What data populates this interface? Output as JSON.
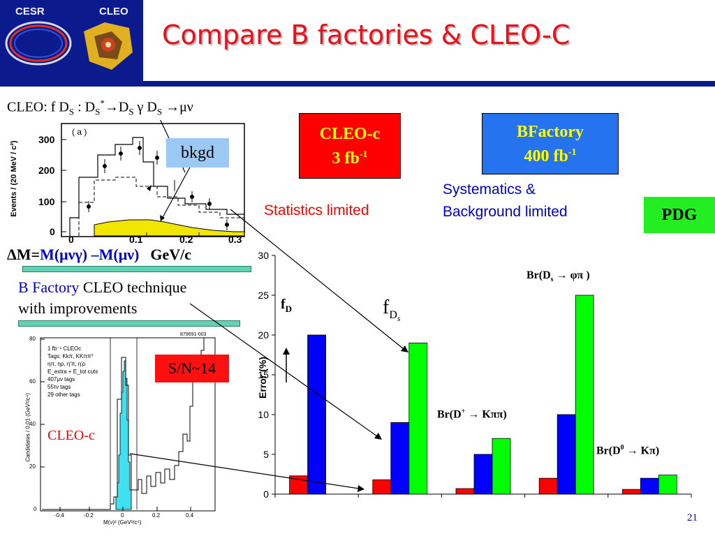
{
  "header": {
    "logo_cesr": "CESR",
    "logo_cleo": "CLEO",
    "title": "Compare B factories & CLEO-C"
  },
  "cleo_fds_label": {
    "a": "CLEO: f D",
    "b": "S",
    "c": " : D",
    "d": "S",
    "e": "*",
    "f": "→D",
    "g": "S",
    "h": " γ D",
    "i": "S",
    "j": " →μν"
  },
  "top_plot": {
    "panel": "( a )",
    "yaxis_label": "Events / (20 MeV / c²)",
    "yticks": [
      "300",
      "200",
      "100",
      "0"
    ],
    "xticks": [
      "0",
      "0.1",
      "0.2",
      "0.3"
    ],
    "bkgd_label": "bkgd"
  },
  "delta_m": {
    "a": "ΔM=",
    "b": "M(μνγ) –M(μν)",
    "c": "GeV/c"
  },
  "technique": {
    "blue": "B Factory",
    "black1": " CLEO technique",
    "black2": "with improvements"
  },
  "bottom_plot": {
    "legend_id": "879691-003",
    "legend_lines": [
      "1 fb⁻¹ CLEOc",
      "Tags: Kkπ, KKππ⁰",
      "ηπ, ηρ, η'π, η'ρ",
      "E_extra + E_tot cuts",
      "407μν tags",
      "55τν tags",
      "29 other tags"
    ],
    "yaxis_label": "Candidates / 0.01 (GeV²/c⁴)",
    "xaxis_label": "M(ν)² (GeV²/c⁴)",
    "yticks": [
      "80",
      "60",
      "40",
      "20",
      "0"
    ],
    "xticks": [
      "-0.4",
      "-0.2",
      "0",
      "0.2",
      "0.4"
    ],
    "sn_label": "S/N~14",
    "cleoc_label": "CLEO-c"
  },
  "boxes": {
    "cleoc_line1": "CLEO-c",
    "cleoc_line2": "3 fb",
    "cleoc_sup": "-1",
    "bf_line1": "BFactory",
    "bf_line2": "400 fb",
    "bf_sup": "-1",
    "pdg": "PDG"
  },
  "notes": {
    "stat_limited": "Statistics limited",
    "syst_line1": "Systematics &",
    "syst_line2": "Background limited"
  },
  "bar_labels": {
    "fD": "f",
    "fD_sub": "D",
    "fDs": "f",
    "fDs_sub": "D",
    "fDs_subsub": "s",
    "brds_a": "Br(D",
    "brds_sub": "s",
    "brds_b": " → φπ )",
    "brdp_a": "Br(D",
    "brdp_sup": "+",
    "brdp_b": " → Kππ)",
    "brd0_a": "Br(D",
    "brd0_sup": "0",
    "brd0_b": " → Kπ)"
  },
  "chart_data": {
    "type": "bar",
    "ylabel": "Error (%)",
    "ylim": [
      0,
      30
    ],
    "yticks": [
      0,
      5,
      10,
      15,
      20,
      25,
      30
    ],
    "grid": false,
    "categories": [
      "fD",
      "fDs",
      "Br(D+ → Kππ)",
      "Br(Ds → φπ)",
      "Br(D0 → Kπ)"
    ],
    "colors": [
      "#ff0000",
      "#0000ff",
      "#00ff00"
    ],
    "series": [
      {
        "values": [
          2.3,
          1.8,
          0.7,
          2.0,
          0.6
        ]
      },
      {
        "values": [
          20,
          9,
          5,
          10,
          2
        ]
      },
      {
        "values": [
          0,
          19,
          7,
          25,
          2.4
        ]
      }
    ]
  },
  "page_number": "21"
}
